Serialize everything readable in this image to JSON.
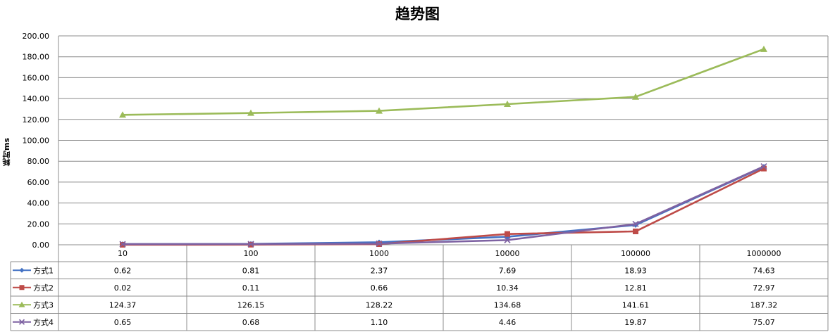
{
  "chart_data": {
    "type": "line",
    "title": "趋势图",
    "xlabel": "",
    "ylabel": "耗时ms",
    "ylim": [
      0,
      200
    ],
    "yticks": [
      "0.00",
      "20.00",
      "40.00",
      "60.00",
      "80.00",
      "100.00",
      "120.00",
      "140.00",
      "160.00",
      "180.00",
      "200.00"
    ],
    "grid": true,
    "legend": "data-table-left",
    "categories": [
      "10",
      "100",
      "1000",
      "10000",
      "100000",
      "1000000"
    ],
    "series": [
      {
        "name": "方式1",
        "color": "#4472C4",
        "marker": "diamond",
        "values": [
          0.62,
          0.81,
          2.37,
          7.69,
          18.93,
          74.63
        ],
        "labels": [
          "0.62",
          "0.81",
          "2.37",
          "7.69",
          "18.93",
          "74.63"
        ]
      },
      {
        "name": "方式2",
        "color": "#BE4B48",
        "marker": "square",
        "values": [
          0.02,
          0.11,
          0.66,
          10.34,
          12.81,
          72.97
        ],
        "labels": [
          "0.02",
          "0.11",
          "0.66",
          "10.34",
          "12.81",
          "72.97"
        ]
      },
      {
        "name": "方式3",
        "color": "#9BBB59",
        "marker": "triangle",
        "values": [
          124.37,
          126.15,
          128.22,
          134.68,
          141.61,
          187.32
        ],
        "labels": [
          "124.37",
          "126.15",
          "128.22",
          "134.68",
          "141.61",
          "187.32"
        ]
      },
      {
        "name": "方式4",
        "color": "#7E62A2",
        "marker": "x",
        "values": [
          0.65,
          0.68,
          1.1,
          4.46,
          19.87,
          75.07
        ],
        "labels": [
          "0.65",
          "0.68",
          "1.10",
          "4.46",
          "19.87",
          "75.07"
        ]
      }
    ]
  }
}
